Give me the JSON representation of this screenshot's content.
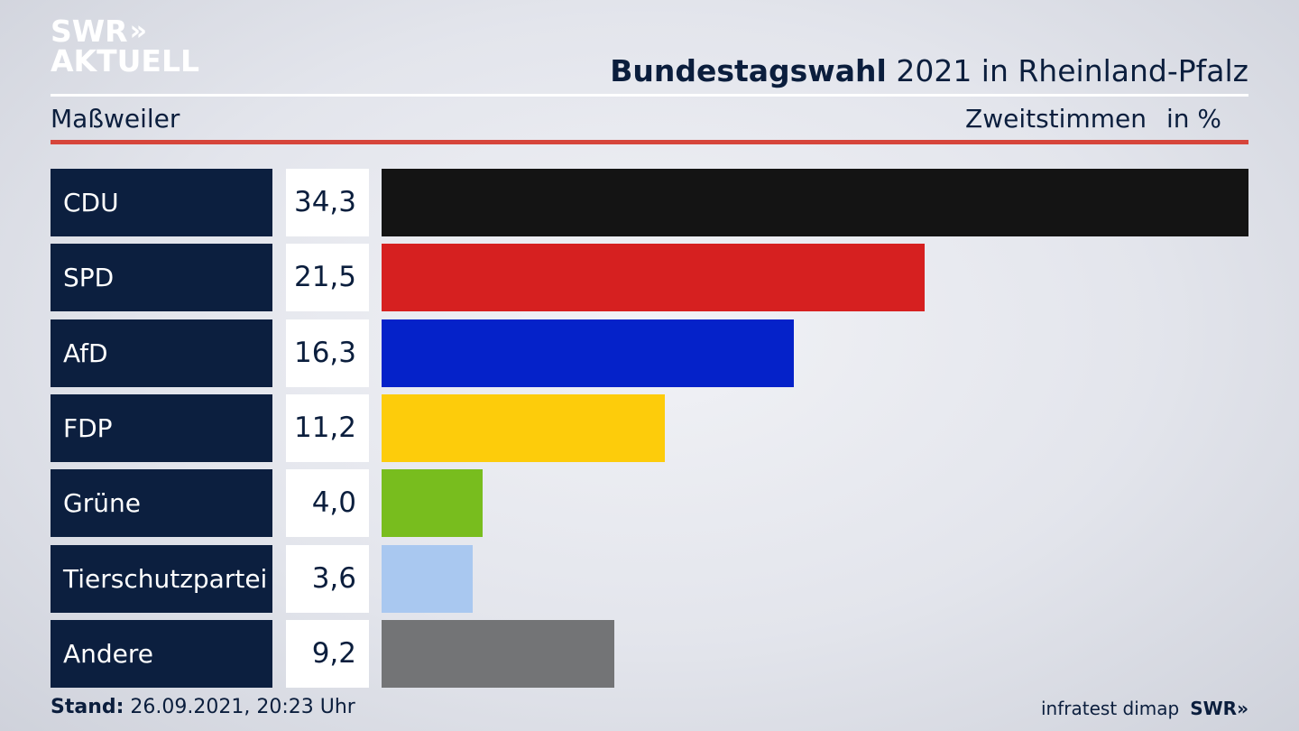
{
  "brand": {
    "logo_line1": "SWR",
    "logo_chevrons": "»",
    "logo_line2": "AKTUELL",
    "logo_small": "SWR»"
  },
  "header": {
    "title_bold": "Bundestagswahl",
    "title_rest": " 2021 in Rheinland-Pfalz",
    "region": "Maßweiler",
    "metric": "Zweitstimmen",
    "unit": "in %"
  },
  "chart_data": {
    "type": "bar",
    "orientation": "horizontal",
    "categories": [
      "CDU",
      "SPD",
      "AfD",
      "FDP",
      "Grüne",
      "Tierschutzpartei",
      "Andere"
    ],
    "values": [
      34.3,
      21.5,
      16.3,
      11.2,
      4.0,
      3.6,
      9.2
    ],
    "value_labels": [
      "34,3",
      "21,5",
      "16,3",
      "11,2",
      "4,0",
      "3,6",
      "9,2"
    ],
    "colors": [
      "#141414",
      "#d62020",
      "#0522c9",
      "#fdcc0b",
      "#78bd1e",
      "#a9c8f0",
      "#737476"
    ],
    "xlim": [
      0,
      34.3
    ]
  },
  "footer": {
    "stand_label": "Stand:",
    "stand_value": " 26.09.2021, 20:23 Uhr",
    "source": "infratest dimap",
    "source_brand": "SWR»"
  }
}
